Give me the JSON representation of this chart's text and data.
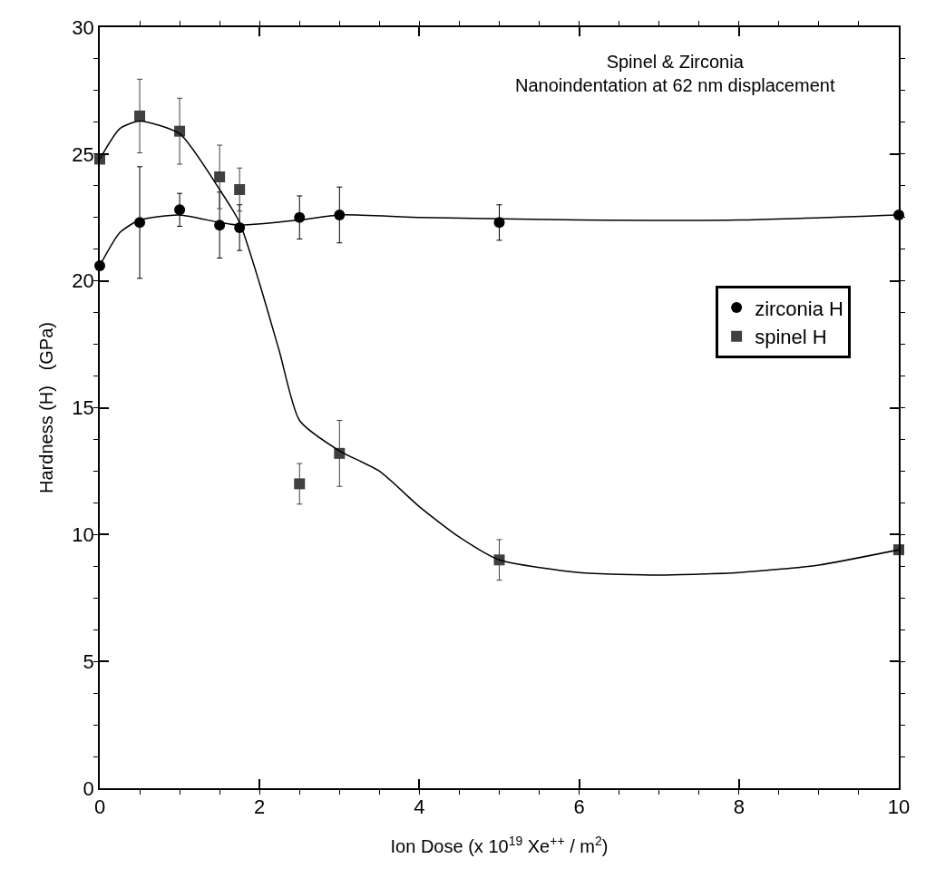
{
  "chart_data": {
    "type": "scatter",
    "title": "Spinel & Zirconia",
    "subtitle": "Nanoindentation at 62 nm displacement",
    "xlabel": "Ion Dose (x 10$^{19}$ Xe$^{++}$ / m$^{2}$)",
    "ylabel": "Hardness (H)   (GPa)",
    "x": [
      0,
      0.5,
      1,
      1.5,
      1.75,
      2.5,
      3,
      5,
      10
    ],
    "series": [
      {
        "name": "zirconia H",
        "color": "#000000",
        "marker": "circle",
        "values": [
          20.6,
          22.3,
          22.8,
          22.2,
          22.1,
          22.5,
          22.6,
          22.3,
          22.6
        ],
        "errors": [
          null,
          2.2,
          0.65,
          1.3,
          0.9,
          0.85,
          1.1,
          0.7,
          null
        ]
      },
      {
        "name": "spinel H",
        "color": "#404040",
        "marker": "square",
        "values": [
          24.8,
          26.5,
          25.9,
          24.1,
          23.6,
          12.0,
          13.2,
          9.0,
          9.4
        ],
        "errors": [
          null,
          1.45,
          1.3,
          1.25,
          0.85,
          0.8,
          1.3,
          0.8,
          null
        ]
      },
      {
        "type": "line",
        "color": "#000000",
        "marker": "none",
        "x": [
          0,
          0.25,
          0.5,
          1,
          1.5,
          1.75,
          2.5,
          3,
          4,
          6,
          8,
          10
        ],
        "values": [
          20.6,
          21.9,
          22.4,
          22.6,
          22.3,
          22.2,
          22.4,
          22.6,
          22.5,
          22.4,
          22.4,
          22.6
        ]
      },
      {
        "type": "line",
        "color": "#000000",
        "marker": "none",
        "x": [
          0,
          0.25,
          0.5,
          1,
          1.5,
          1.75,
          2,
          2.25,
          2.5,
          3,
          3.5,
          4,
          4.5,
          5,
          6,
          7,
          8,
          9,
          10
        ],
        "values": [
          24.8,
          26.0,
          26.3,
          25.8,
          23.6,
          22.3,
          19.9,
          17.2,
          14.5,
          13.3,
          12.5,
          11.1,
          9.9,
          9.0,
          8.5,
          8.4,
          8.5,
          8.8,
          9.4
        ]
      }
    ],
    "xlim": [
      0,
      10
    ],
    "xticks": [
      0,
      2,
      4,
      6,
      8,
      10
    ],
    "ylim": [
      0,
      30
    ],
    "yticks": [
      0,
      5,
      10,
      15,
      20,
      25,
      30
    ],
    "legend": "right",
    "line_style": "solid"
  }
}
